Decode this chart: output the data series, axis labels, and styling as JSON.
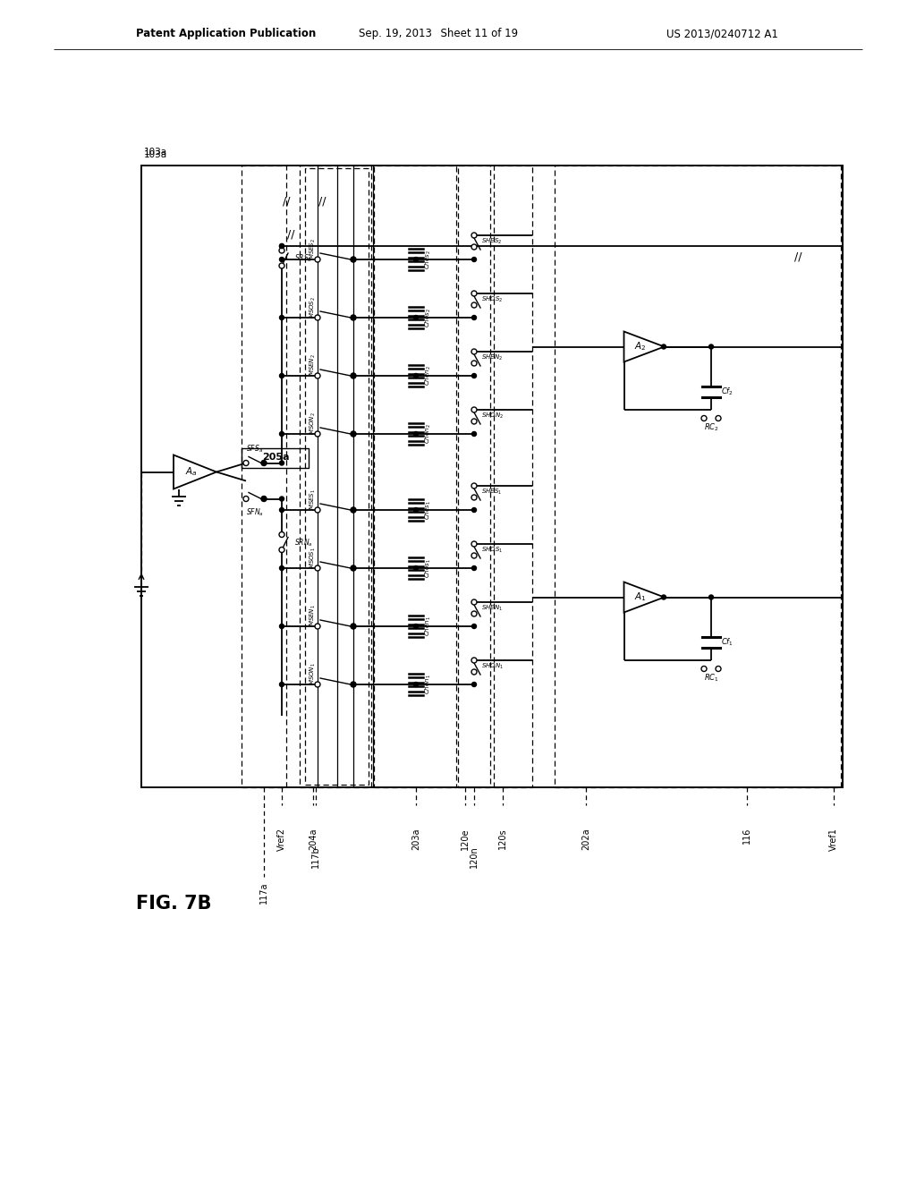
{
  "header_left": "Patent Application Publication",
  "header_center": "Sep. 19, 2013  Sheet 11 of 19",
  "header_right": "US 2013/0240712 A1",
  "fig_label": "FIG. 7B",
  "label_103a": "103a",
  "label_117a": "117a",
  "label_Vref2": "Vref2",
  "label_204a": "204a",
  "label_117b": "117b",
  "label_203a": "203a",
  "label_120e": "120e",
  "label_120n": "120n",
  "label_120s": "120s",
  "label_202a": "202a",
  "label_116": "116",
  "label_Vref1": "Vref1",
  "background_color": "#ffffff"
}
